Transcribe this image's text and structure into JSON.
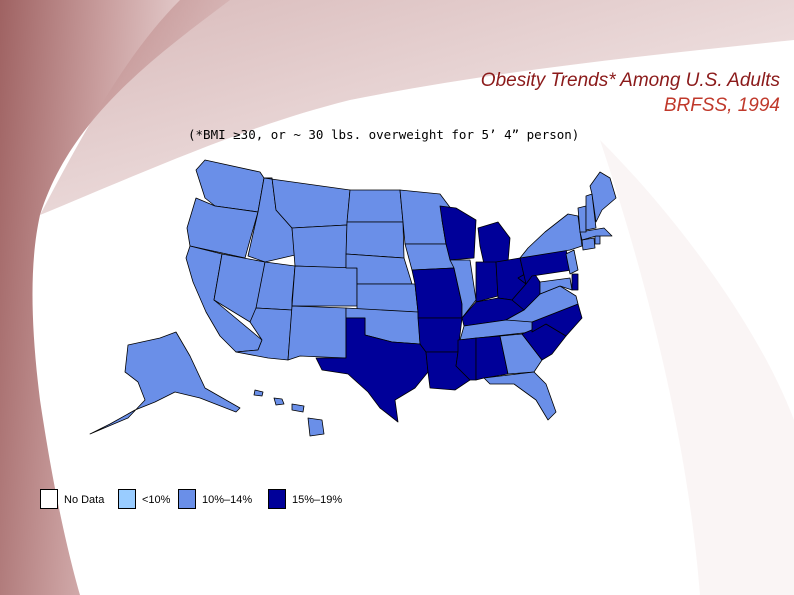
{
  "title": {
    "line1": "Obesity Trends* Among U.S. Adults",
    "line2": "BRFSS, 1994"
  },
  "subtitle": "(*BMI ≥30, or ~ 30 lbs. overweight for 5’ 4” person)",
  "colors": {
    "no_data": "#ffffff",
    "lt10": "#99ccff",
    "10_14": "#6a8fe8",
    "15_19": "#000099",
    "background_band": "#b07878",
    "title_dark": "#8b1a1a",
    "title_light": "#c0392b"
  },
  "legend": [
    {
      "label": "No Data",
      "color": "#ffffff"
    },
    {
      "label": "<10%",
      "color": "#99ccff"
    },
    {
      "label": "10%–14%",
      "color": "#6a8fe8"
    },
    {
      "label": "15%–19%",
      "color": "#000099"
    }
  ],
  "map": {
    "categories": {
      "15%–19%": [
        "Wisconsin",
        "Michigan",
        "Indiana",
        "Ohio",
        "Missouri",
        "Arkansas",
        "Louisiana",
        "Mississippi",
        "Alabama",
        "Texas",
        "Kentucky",
        "West Virginia",
        "Pennsylvania",
        "North Carolina",
        "South Carolina",
        "Delaware"
      ],
      "10%–14%": [
        "Washington",
        "Oregon",
        "California",
        "Nevada",
        "Idaho",
        "Montana",
        "Wyoming",
        "Utah",
        "Arizona",
        "Colorado",
        "New Mexico",
        "North Dakota",
        "South Dakota",
        "Nebraska",
        "Kansas",
        "Oklahoma",
        "Minnesota",
        "Iowa",
        "Illinois",
        "Tennessee",
        "Georgia",
        "Florida",
        "Virginia",
        "Maryland",
        "New York",
        "New Jersey",
        "Connecticut",
        "Rhode Island",
        "Massachusetts",
        "Vermont",
        "New Hampshire",
        "Maine",
        "Alaska",
        "Hawaii"
      ]
    }
  }
}
